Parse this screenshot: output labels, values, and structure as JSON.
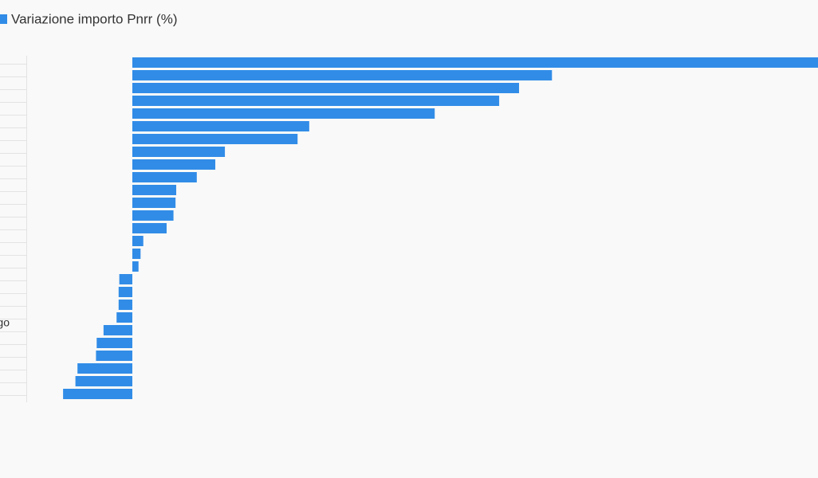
{
  "chart_data": {
    "type": "barh",
    "legend": "Variazione importo Pnrr (%)",
    "color": "#318ce7",
    "categories": [
      null,
      null,
      null,
      null,
      null,
      null,
      null,
      null,
      null,
      null,
      null,
      null,
      null,
      null,
      null,
      null,
      null,
      null,
      null,
      null,
      "go",
      null,
      null,
      null,
      null,
      null,
      null
    ],
    "values": [
      100,
      61.2,
      56.4,
      53.5,
      44.1,
      25.8,
      24.1,
      13.5,
      12.1,
      9.4,
      6.4,
      6.3,
      6.0,
      5.0,
      1.6,
      1.2,
      0.9,
      -1.9,
      -2.0,
      -2.0,
      -2.3,
      -4.2,
      -5.2,
      -5.3,
      -8.0,
      -8.3,
      -10.1
    ],
    "xlim": [
      -19.3,
      100
    ]
  }
}
